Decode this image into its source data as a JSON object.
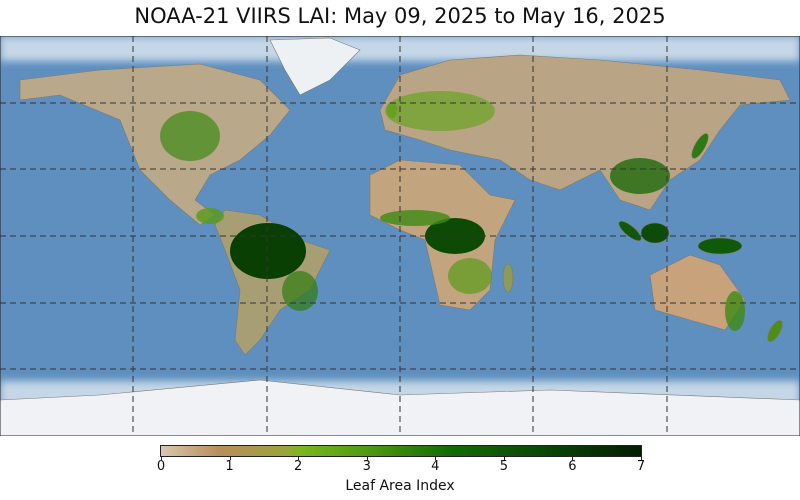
{
  "title": "NOAA-21 VIIRS LAI: May 09, 2025 to May 16, 2025",
  "colorbar": {
    "label": "Leaf Area Index",
    "ticks": [
      "0",
      "1",
      "2",
      "3",
      "4",
      "5",
      "6",
      "7"
    ],
    "range": [
      0,
      7
    ],
    "colors": [
      "#d8c8ae",
      "#b88e5c",
      "#9aa43a",
      "#7ab81e",
      "#4e9a10",
      "#136c05",
      "#0a4a05",
      "#041c02"
    ]
  },
  "map": {
    "projection": "equirectangular",
    "ocean_color": "#5e8fbf",
    "gridlines": {
      "longitudes": [
        -120,
        -60,
        0,
        60,
        120
      ],
      "latitudes": [
        60,
        30,
        0,
        -30,
        -60
      ],
      "style": "dashed"
    }
  }
}
